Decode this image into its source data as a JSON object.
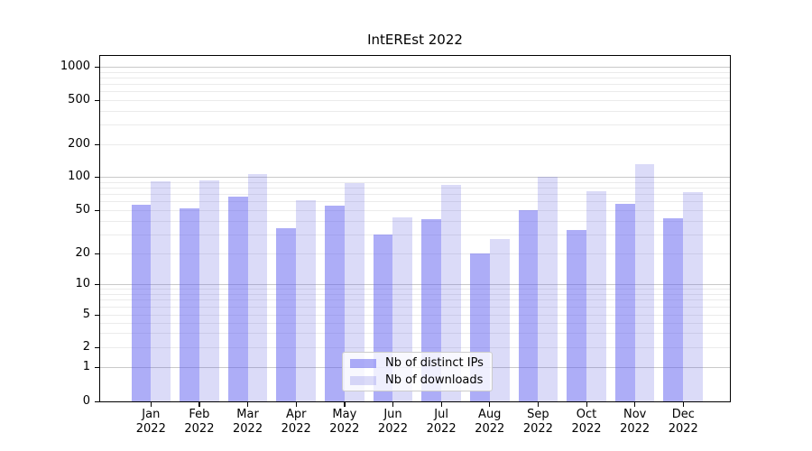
{
  "chart_data": {
    "type": "bar",
    "title": "IntEREst 2022",
    "categories": [
      "Jan",
      "Feb",
      "Mar",
      "Apr",
      "May",
      "Jun",
      "Jul",
      "Aug",
      "Sep",
      "Oct",
      "Nov",
      "Dec"
    ],
    "category_year": "2022",
    "series": [
      {
        "name": "Nb of distinct IPs",
        "color": "rgba(92,92,240,0.50)",
        "values": [
          56,
          52,
          66,
          34,
          55,
          30,
          41,
          20,
          50,
          33,
          57,
          42
        ]
      },
      {
        "name": "Nb of downloads",
        "color": "rgba(92,92,225,0.22)",
        "values": [
          91,
          93,
          106,
          62,
          87,
          43,
          85,
          27,
          100,
          74,
          130,
          73
        ]
      }
    ],
    "yscale": "symlog",
    "ylim": [
      0,
      1000
    ],
    "ytick_values": [
      0,
      1,
      2,
      5,
      10,
      20,
      50,
      100,
      200,
      500,
      1000
    ],
    "ytick_labels": [
      "0",
      "1",
      "2",
      "5",
      "10",
      "20",
      "50",
      "100",
      "200",
      "500",
      "1000"
    ],
    "xlabel": "",
    "ylabel": "",
    "grid": "horizontal major + minor",
    "legend_position": "lower center",
    "colors": {
      "bar_ips_rendered": "#aaaaf5",
      "bar_downloads_rendered": "#dcdcf8",
      "grid_major": "#c9c9c9",
      "grid_minor": "#ebebeb",
      "axis": "#000000",
      "background": "#ffffff"
    }
  }
}
